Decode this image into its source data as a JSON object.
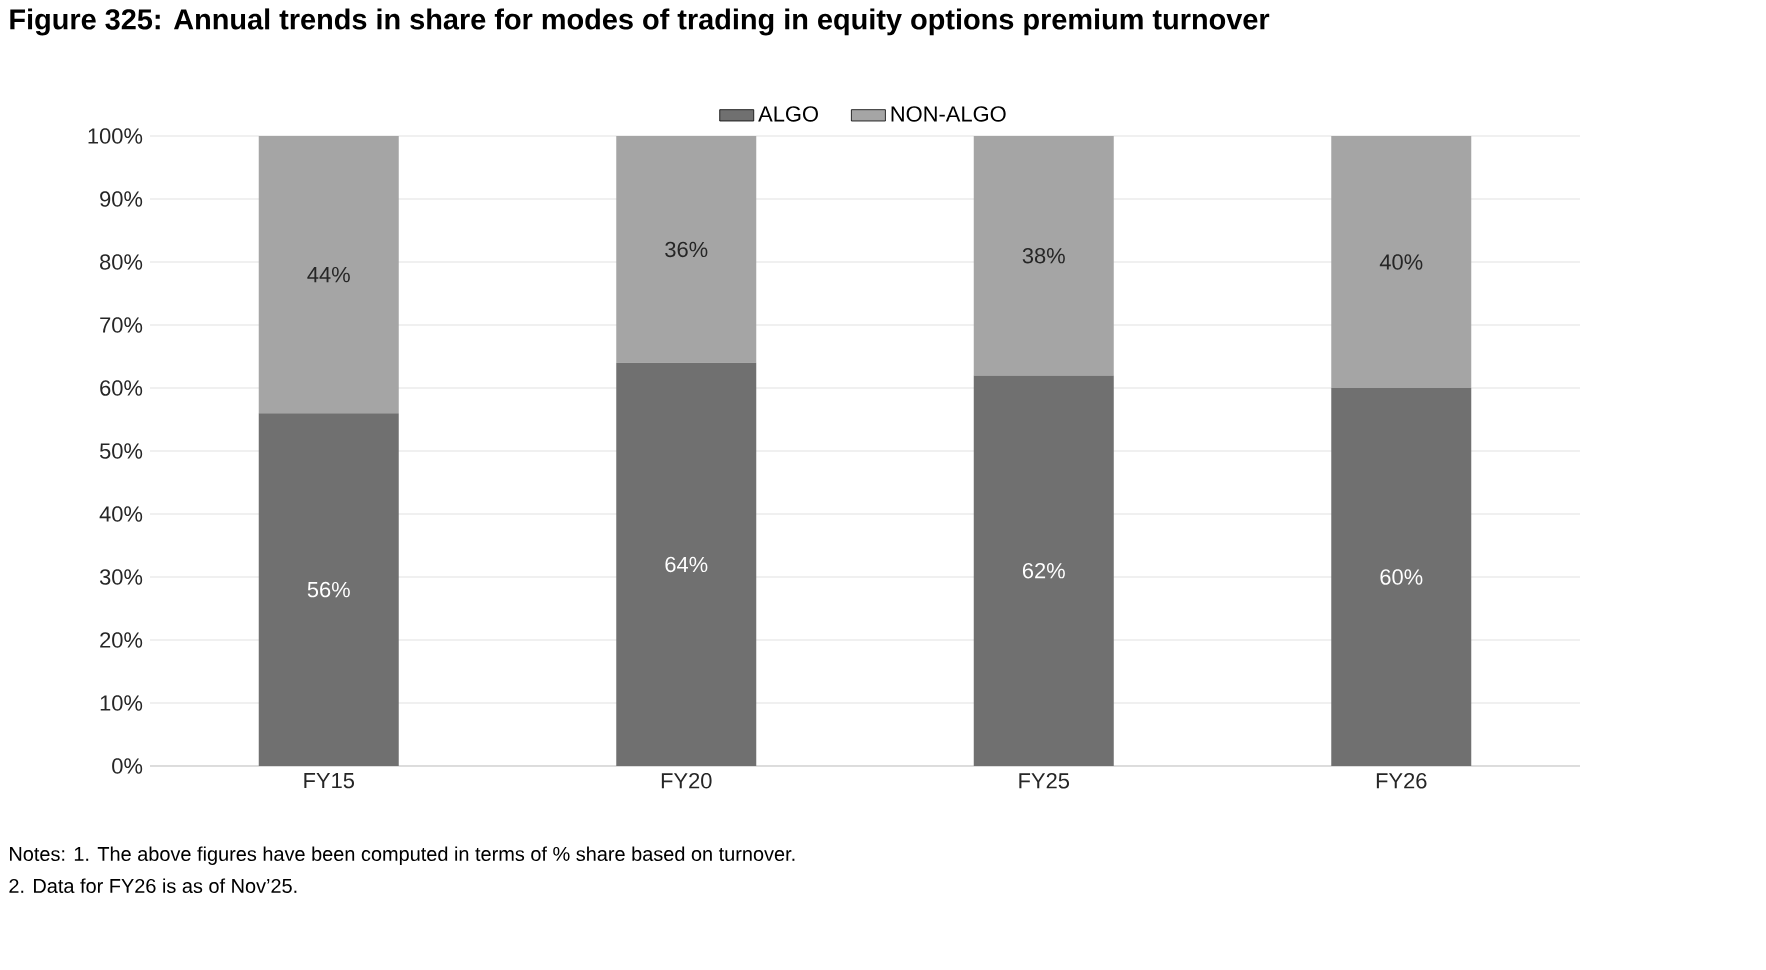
{
  "chart_data": {
    "type": "bar",
    "title": "Figure 325: Annual trends in share for modes of trading in equity options premium turnover",
    "categories": [
      "FY15",
      "FY20",
      "FY25",
      "FY26"
    ],
    "stacked": true,
    "series": [
      {
        "name": "ALGO",
        "color": "#707070",
        "values": [
          56,
          64,
          62,
          60
        ],
        "value_labels": [
          "56%",
          "64%",
          "62%",
          "60%"
        ]
      },
      {
        "name": "NON-ALGO",
        "color": "#a5a5a5",
        "values": [
          44,
          36,
          38,
          40
        ],
        "value_labels": [
          "44%",
          "36%",
          "38%",
          "40%"
        ]
      }
    ],
    "ylim": [
      0,
      100
    ],
    "yticks": [
      {
        "value": 0,
        "label": "0%"
      },
      {
        "value": 10,
        "label": "10%"
      },
      {
        "value": 20,
        "label": "20%"
      },
      {
        "value": 30,
        "label": "30%"
      },
      {
        "value": 40,
        "label": "40%"
      },
      {
        "value": 50,
        "label": "50%"
      },
      {
        "value": 60,
        "label": "60%"
      },
      {
        "value": 70,
        "label": "70%"
      },
      {
        "value": 80,
        "label": "80%"
      },
      {
        "value": 90,
        "label": "90%"
      },
      {
        "value": 100,
        "label": "100%"
      }
    ],
    "grid": "y",
    "legend": "top",
    "annotations": [
      "Notes: 1. The above figures have been computed in terms of % share based on turnover.",
      "2. Data for FY26 is as of Nov’25."
    ]
  }
}
